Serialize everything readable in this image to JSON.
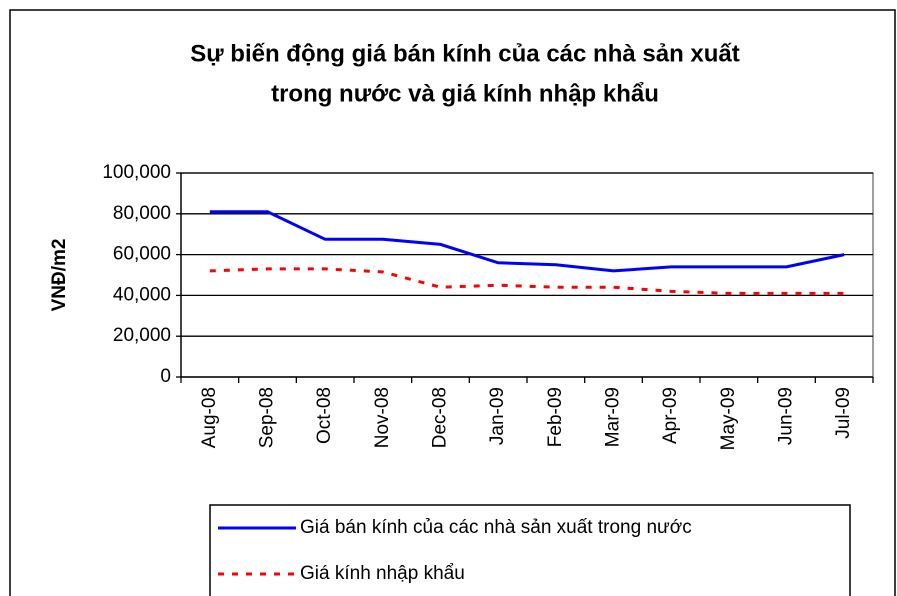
{
  "chart_data": {
    "type": "line",
    "title": [
      "Sự biến động giá bán kính của các nhà sản xuất",
      "trong nước và giá kính nhập khẩu"
    ],
    "y_label": "VNĐ/m2",
    "categories": [
      "Aug-08",
      "Sep-08",
      "Oct-08",
      "Nov-08",
      "Dec-08",
      "Jan-09",
      "Feb-09",
      "Mar-09",
      "Apr-09",
      "May-09",
      "Jun-09",
      "Jul-09"
    ],
    "series": [
      {
        "name": "Giá bán kính của các nhà sản xuất trong nước",
        "color": "#0000ff",
        "dash": "solid",
        "values": [
          81000,
          81000,
          67500,
          67500,
          65000,
          56000,
          55000,
          52000,
          54000,
          54000,
          54000,
          60000
        ]
      },
      {
        "name": "Giá kính nhập khẩu",
        "color": "#ff0000",
        "dash": "dashed",
        "values": [
          52000,
          53000,
          53000,
          51500,
          44000,
          45000,
          44000,
          44000,
          42000,
          41000,
          41000,
          41000
        ]
      }
    ],
    "ylim": [
      0,
      100000
    ],
    "yticks": [
      0,
      {
        "value": 20000,
        "label": "20,000"
      },
      {
        "value": 40000,
        "label": "40,000"
      },
      {
        "value": 60000,
        "label": "60,000"
      },
      {
        "value": 80000,
        "label": "80,000"
      },
      {
        "value": 100000,
        "label": "100,000"
      }
    ],
    "grid": true
  }
}
